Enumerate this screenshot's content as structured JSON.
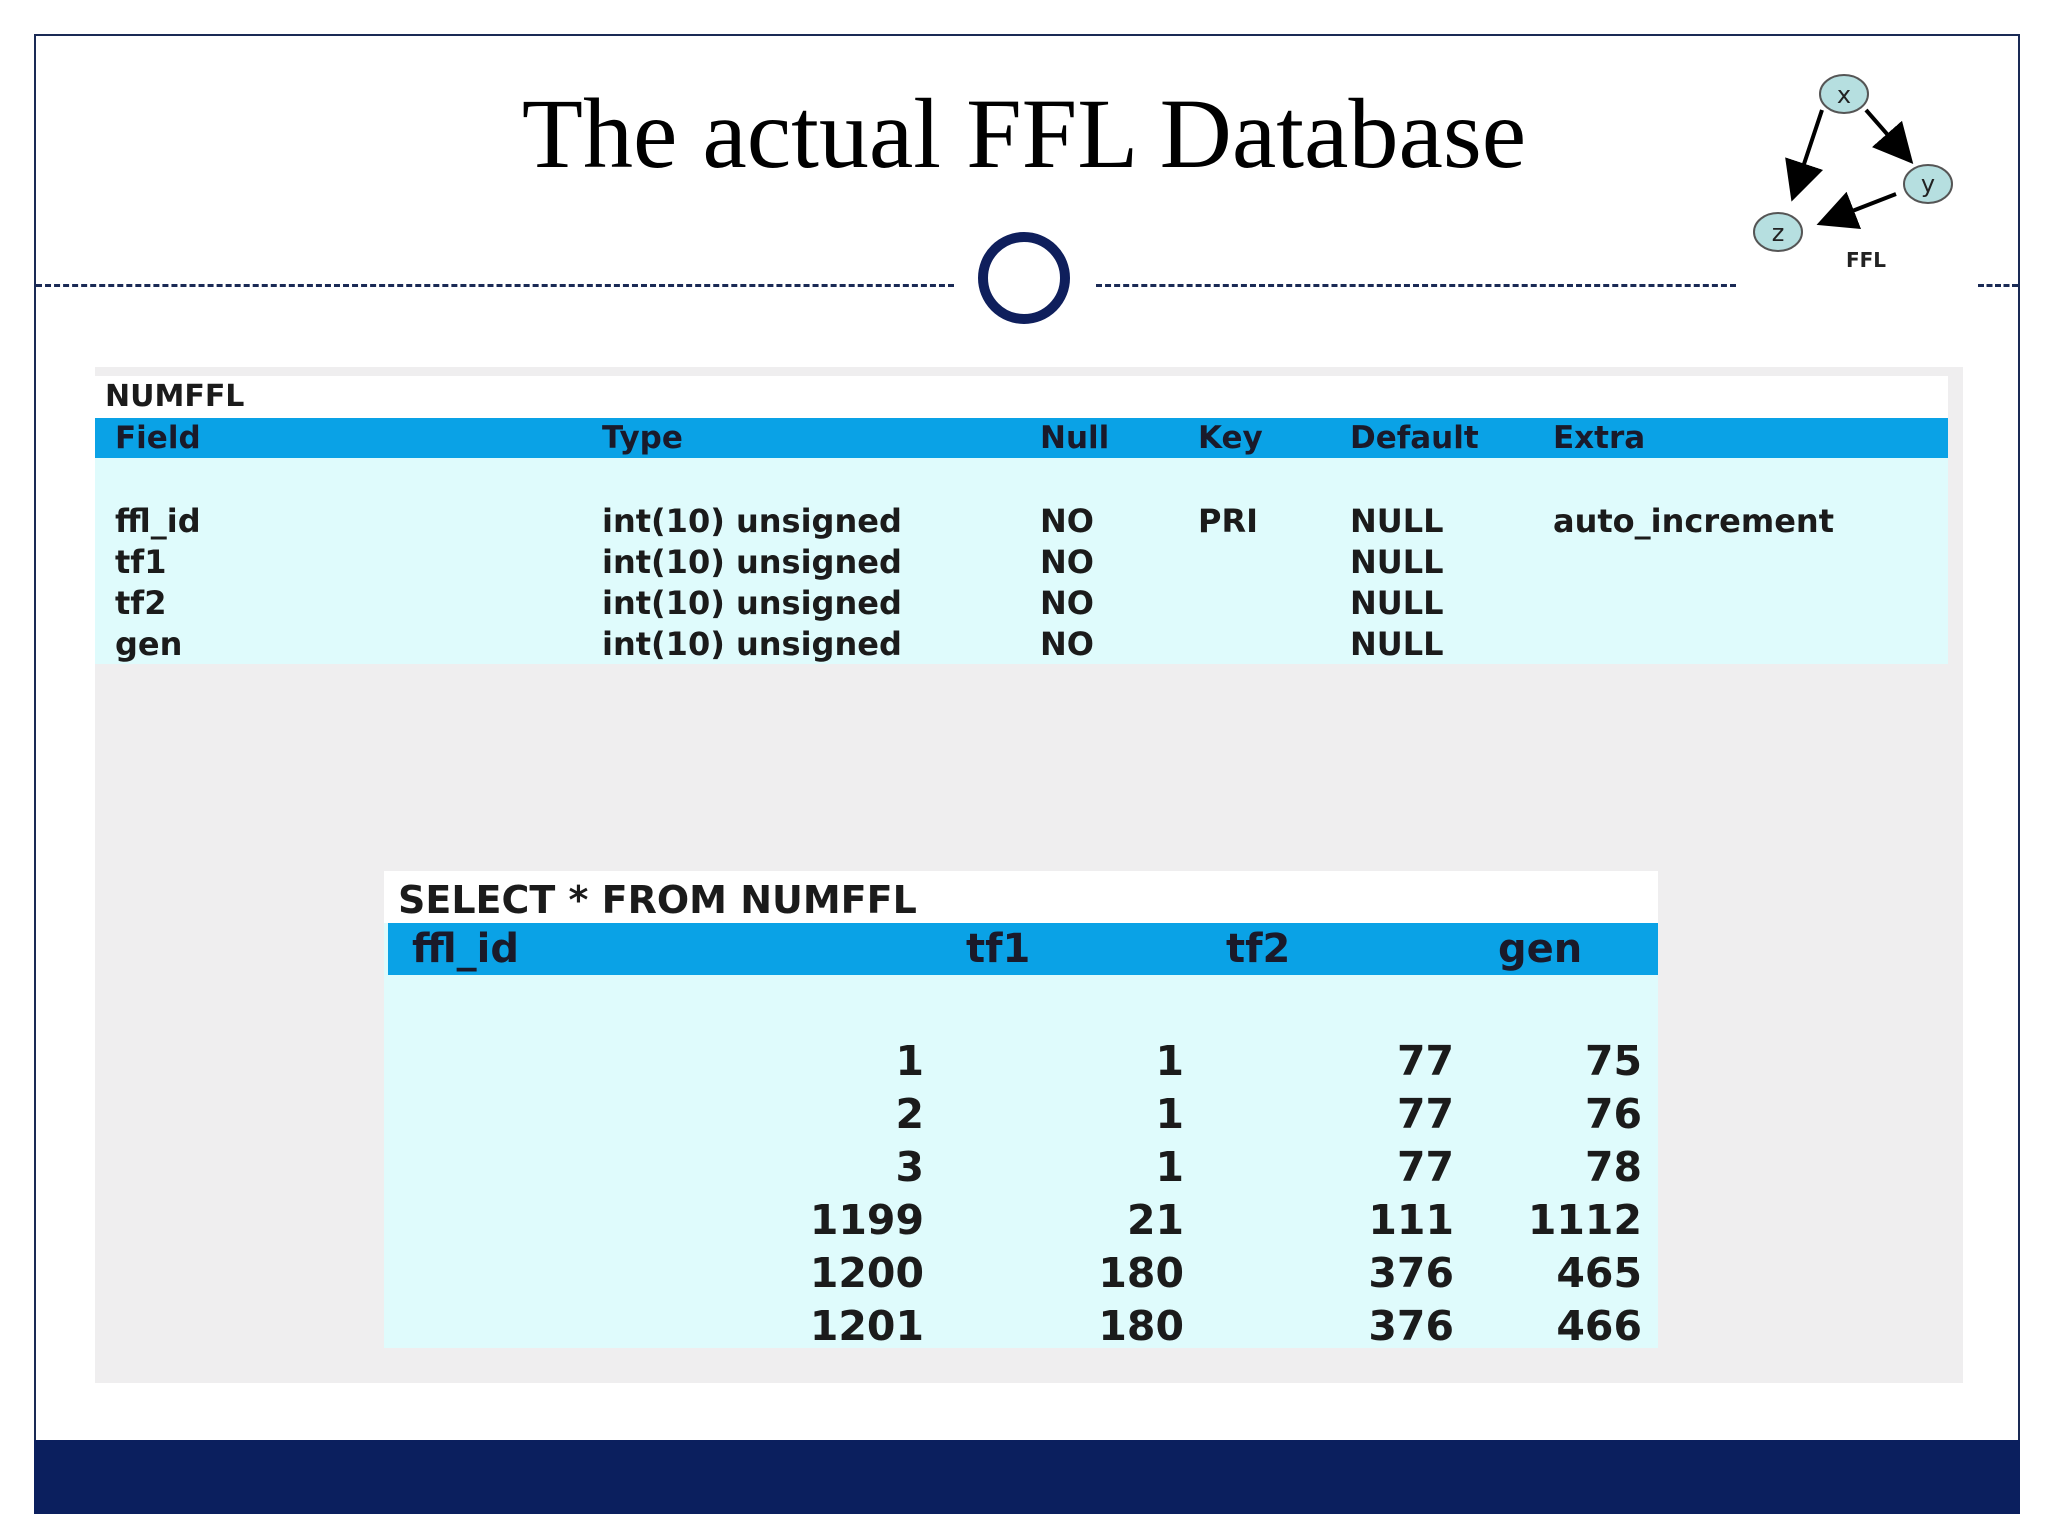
{
  "slide": {
    "title": "The actual FFL Database"
  },
  "diagram": {
    "nodes": {
      "x": "x",
      "y": "y",
      "z": "z"
    },
    "caption": "FFL",
    "node_color": "#b6dfe0"
  },
  "schema": {
    "caption": "NUMFFL",
    "headers": [
      "Field",
      "Type",
      "Null",
      "Key",
      "Default",
      "Extra"
    ],
    "rows": [
      {
        "field": "ffl_id",
        "type": "int(10) unsigned",
        "null": "NO",
        "key": "PRI",
        "default": "NULL",
        "extra": "auto_increment"
      },
      {
        "field": "tf1",
        "type": "int(10) unsigned",
        "null": "NO",
        "key": "",
        "default": "NULL",
        "extra": ""
      },
      {
        "field": "tf2",
        "type": "int(10) unsigned",
        "null": "NO",
        "key": "",
        "default": "NULL",
        "extra": ""
      },
      {
        "field": "gen",
        "type": "int(10) unsigned",
        "null": "NO",
        "key": "",
        "default": "NULL",
        "extra": ""
      }
    ]
  },
  "query": {
    "caption": "SELECT * FROM NUMFFL",
    "headers": [
      "ffl_id",
      "tf1",
      "tf2",
      "gen"
    ],
    "rows": [
      {
        "ffl_id": "1",
        "tf1": "1",
        "tf2": "77",
        "gen": "75"
      },
      {
        "ffl_id": "2",
        "tf1": "1",
        "tf2": "77",
        "gen": "76"
      },
      {
        "ffl_id": "3",
        "tf1": "1",
        "tf2": "77",
        "gen": "78"
      },
      {
        "ffl_id": "1199",
        "tf1": "21",
        "tf2": "111",
        "gen": "1112"
      },
      {
        "ffl_id": "1200",
        "tf1": "180",
        "tf2": "376",
        "gen": "465"
      },
      {
        "ffl_id": "1201",
        "tf1": "180",
        "tf2": "376",
        "gen": "466"
      }
    ]
  },
  "colors": {
    "header_blue": "#0aa2e6",
    "table_bg": "#dffbfc",
    "navy": "#0b1f5e"
  }
}
